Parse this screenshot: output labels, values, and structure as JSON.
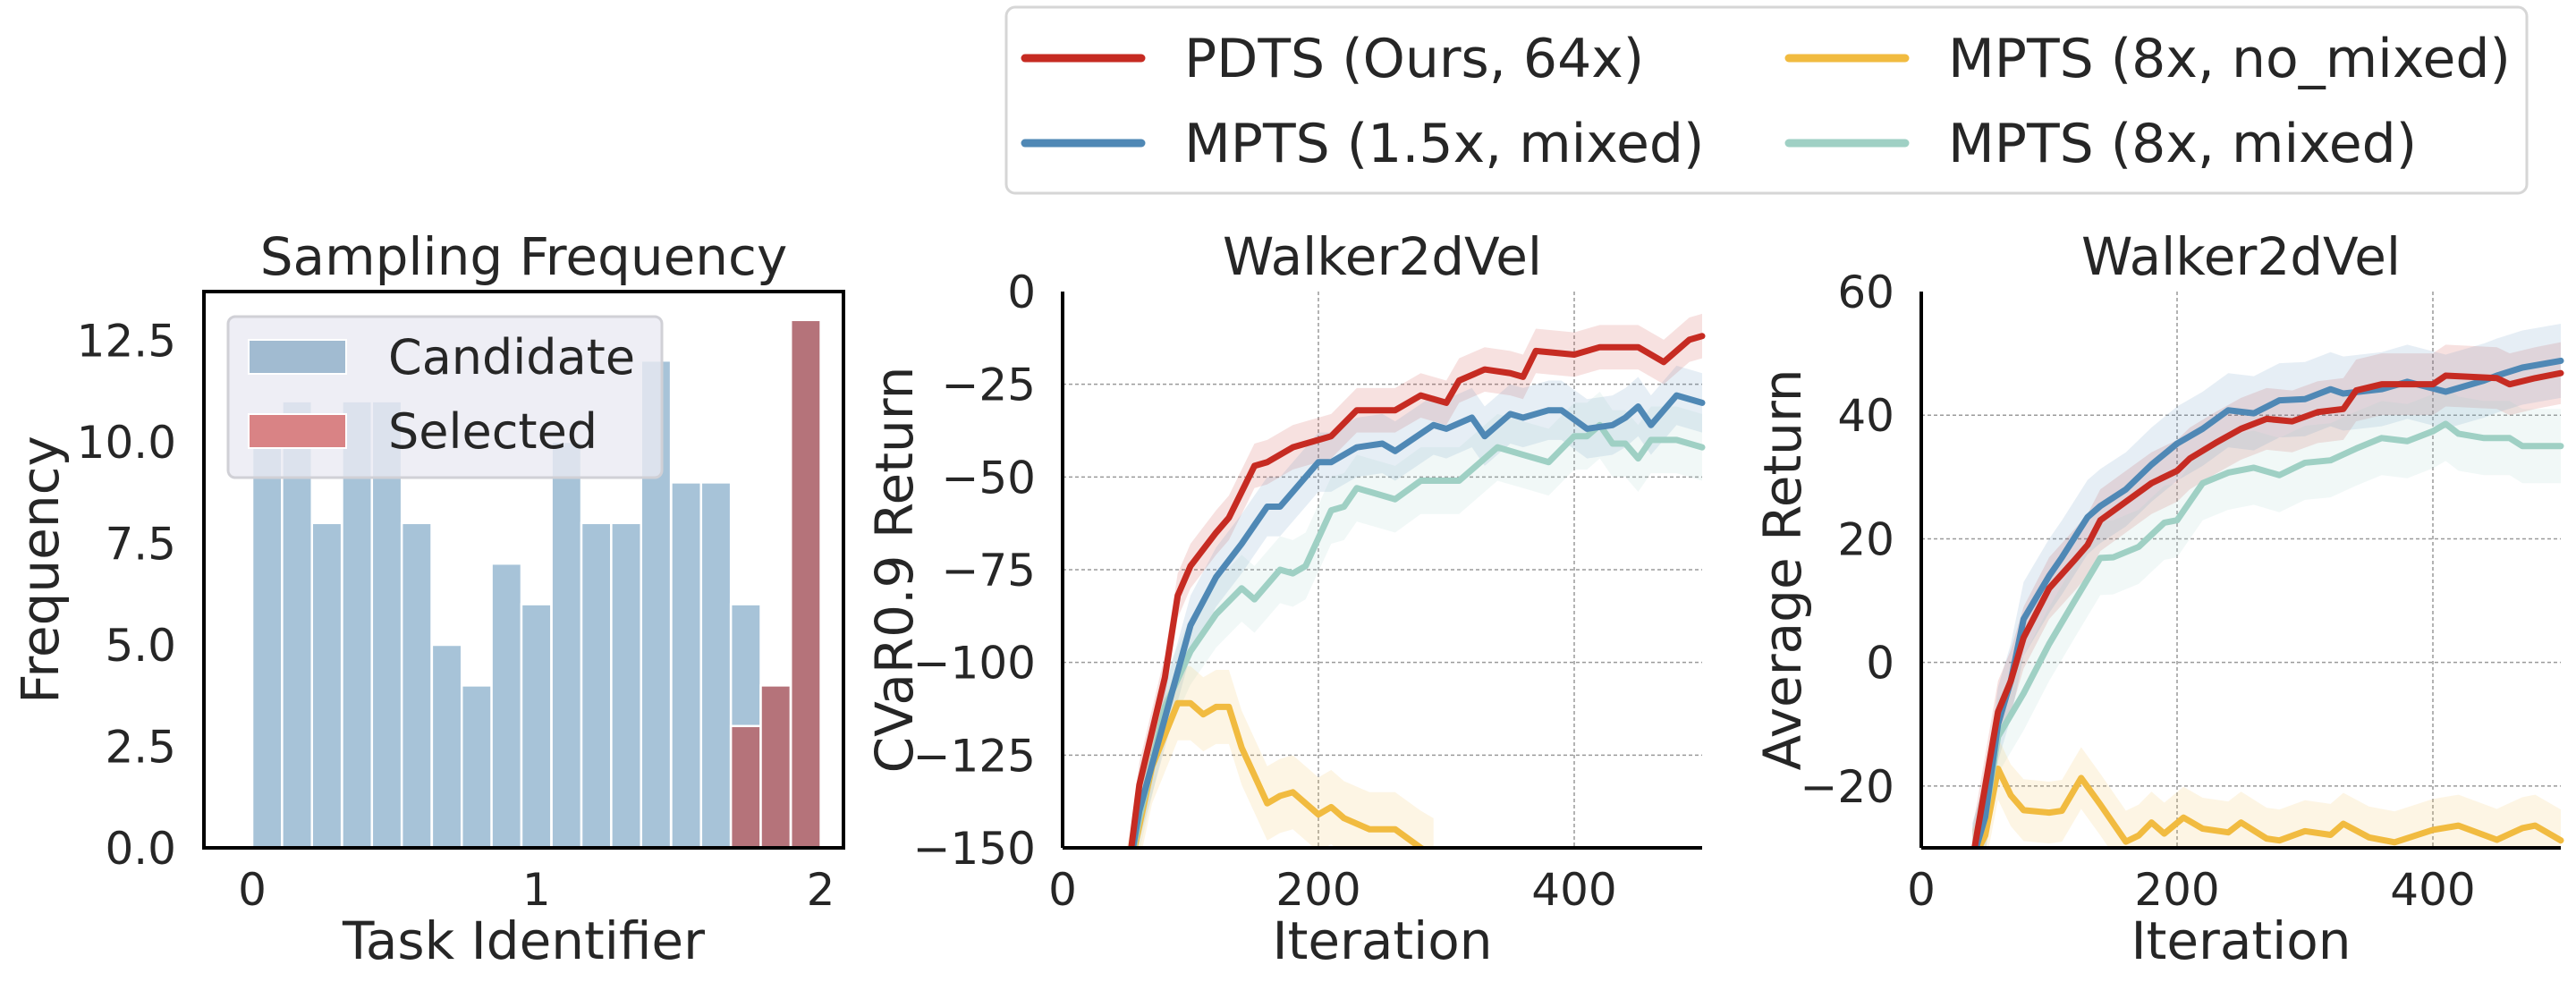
{
  "legend": {
    "items": [
      {
        "label": "PDTS (Ours, 64x)",
        "color": "#c62b22"
      },
      {
        "label": "MPTS (8x, no_mixed)",
        "color": "#f1bb40"
      },
      {
        "label": "MPTS (1.5x, mixed)",
        "color": "#4f88b5"
      },
      {
        "label": "MPTS (8x, mixed)",
        "color": "#9fd0c4"
      }
    ]
  },
  "chart_data": [
    {
      "type": "bar",
      "title": "Sampling Frequency",
      "xlabel": "Task Identifier",
      "ylabel": "Frequency",
      "xlim": [
        -0.17,
        2.08
      ],
      "ylim": [
        0,
        13.7
      ],
      "xticks": [
        "0",
        "1",
        "2"
      ],
      "yticks": [
        "0.0",
        "2.5",
        "5.0",
        "7.5",
        "10.0",
        "12.5"
      ],
      "bin_width": 0.105,
      "legend_position": "upper-left",
      "series": [
        {
          "name": "Candidate",
          "color": "#a7c3d8",
          "legend_color": "#a1bbd1",
          "bin_starts": [
            0,
            0.105,
            0.21,
            0.316,
            0.421,
            0.526,
            0.632,
            0.737,
            0.842,
            0.947,
            1.053,
            1.158,
            1.263,
            1.368,
            1.474,
            1.579,
            1.684
          ],
          "values": [
            10,
            11,
            8,
            11,
            11,
            8,
            5,
            4,
            7,
            6,
            10,
            8,
            8,
            12,
            9,
            9,
            6
          ]
        },
        {
          "name": "Selected",
          "color": "#b5737a",
          "legend_color": "#d98385",
          "bin_starts": [
            1.684,
            1.789,
            1.895
          ],
          "values": [
            3,
            4,
            13
          ]
        }
      ]
    },
    {
      "type": "line",
      "title": "Walker2dVel",
      "xlabel": "Iteration",
      "ylabel": "CVaR0.9 Return",
      "xlim": [
        0,
        500
      ],
      "ylim": [
        -150,
        0
      ],
      "xticks": [
        "0",
        "200",
        "400"
      ],
      "yticks": [
        "0",
        "−25",
        "−50",
        "−75",
        "−100",
        "−125",
        "−150"
      ],
      "grid": true,
      "series": [
        {
          "name": "PDTS (Ours, 64x)",
          "color": "#c62b22",
          "band": 6,
          "x": [
            50,
            60,
            80,
            90,
            100,
            120,
            130,
            150,
            160,
            180,
            200,
            210,
            230,
            260,
            280,
            300,
            310,
            330,
            350,
            360,
            370,
            400,
            420,
            450,
            470,
            490,
            500
          ],
          "y": [
            -160,
            -133,
            -104,
            -82,
            -74,
            -65,
            -61,
            -47,
            -46,
            -42,
            -40,
            -39,
            -32,
            -32,
            -28,
            -30,
            -24,
            -21,
            -22,
            -23,
            -16,
            -17,
            -15,
            -15,
            -19,
            -13,
            -12
          ]
        },
        {
          "name": "MPTS (1.5x, mixed)",
          "color": "#4f88b5",
          "band": 8,
          "x": [
            50,
            60,
            80,
            100,
            120,
            140,
            160,
            170,
            200,
            210,
            230,
            250,
            260,
            290,
            300,
            320,
            330,
            350,
            360,
            380,
            390,
            410,
            430,
            440,
            450,
            460,
            480,
            500
          ],
          "y": [
            -160,
            -140,
            -115,
            -90,
            -77,
            -68,
            -58,
            -58,
            -46,
            -46,
            -42,
            -41,
            -43,
            -36,
            -37,
            -34,
            -39,
            -33,
            -34,
            -32,
            -32,
            -37,
            -36,
            -34,
            -31,
            -36,
            -28,
            -30
          ]
        },
        {
          "name": "MPTS (8x, mixed)",
          "color": "#9fd0c4",
          "band": 9,
          "x": [
            50,
            60,
            80,
            100,
            120,
            140,
            150,
            170,
            180,
            190,
            210,
            220,
            230,
            240,
            260,
            280,
            310,
            340,
            360,
            380,
            400,
            410,
            420,
            430,
            440,
            450,
            460,
            480,
            500
          ],
          "y": [
            -160,
            -142,
            -112,
            -97,
            -87,
            -80,
            -83,
            -75,
            -76,
            -74,
            -59,
            -58,
            -53,
            -54,
            -56,
            -51,
            -51,
            -42,
            -44,
            -46,
            -39,
            -39,
            -36,
            -41,
            -41,
            -45,
            -40,
            -40,
            -42
          ]
        },
        {
          "name": "MPTS (8x, no_mixed)",
          "color": "#f1bb40",
          "band": 10,
          "x": [
            50,
            70,
            90,
            100,
            110,
            120,
            130,
            140,
            160,
            170,
            180,
            200,
            210,
            220,
            240,
            260,
            280,
            290
          ],
          "y": [
            -160,
            -128,
            -111,
            -111,
            -114,
            -112,
            -112,
            -123,
            -138,
            -136,
            -135,
            -141,
            -139,
            -142,
            -145,
            -145,
            -150,
            -152
          ]
        }
      ]
    },
    {
      "type": "line",
      "title": "Walker2dVel",
      "xlabel": "Iteration",
      "ylabel": "Average Return",
      "xlim": [
        0,
        500
      ],
      "ylim": [
        -30,
        60
      ],
      "xticks": [
        "0",
        "200",
        "400"
      ],
      "yticks": [
        "60",
        "40",
        "20",
        "0",
        "−20"
      ],
      "grid": true,
      "series": [
        {
          "name": "PDTS (Ours, 64x)",
          "color": "#c62b22",
          "band": 5,
          "x": [
            40,
            60,
            70,
            80,
            100,
            120,
            130,
            140,
            160,
            180,
            200,
            210,
            230,
            250,
            270,
            290,
            310,
            330,
            340,
            360,
            400,
            410,
            450,
            460,
            480,
            500
          ],
          "y": [
            -32,
            -8,
            -3,
            4,
            12,
            16.6,
            19,
            23,
            26,
            29,
            31,
            33,
            35.5,
            37.8,
            39.4,
            39,
            40.5,
            41,
            44,
            45,
            45,
            46.4,
            46,
            45,
            46,
            46.8
          ]
        },
        {
          "name": "MPTS (1.5x, mixed)",
          "color": "#4f88b5",
          "band": 6,
          "x": [
            40,
            50,
            60,
            70,
            80,
            100,
            110,
            130,
            140,
            160,
            180,
            200,
            220,
            240,
            260,
            280,
            300,
            320,
            330,
            360,
            380,
            410,
            440,
            450,
            470,
            500
          ],
          "y": [
            -32,
            -25,
            -10,
            -3,
            7,
            14,
            17,
            23.5,
            25.3,
            28,
            32,
            35.4,
            37.8,
            40.8,
            40.3,
            42.4,
            42.6,
            44.2,
            43.5,
            44.2,
            45.4,
            43.8,
            45.6,
            46.4,
            47.7,
            48.8
          ]
        },
        {
          "name": "MPTS (8x, mixed)",
          "color": "#9fd0c4",
          "band": 6,
          "x": [
            40,
            50,
            60,
            80,
            100,
            120,
            140,
            150,
            170,
            190,
            200,
            220,
            240,
            260,
            280,
            300,
            320,
            340,
            360,
            380,
            400,
            410,
            420,
            440,
            460,
            470,
            500
          ],
          "y": [
            -32,
            -25,
            -12,
            -5,
            3,
            10,
            16.9,
            17,
            18.7,
            22.6,
            23,
            29,
            30.7,
            31.5,
            30.3,
            32.3,
            32.7,
            34.6,
            36.3,
            35.8,
            37.4,
            38.6,
            37,
            36.3,
            36.3,
            35,
            35
          ]
        },
        {
          "name": "MPTS (8x, no_mixed)",
          "color": "#f1bb40",
          "band": 5,
          "x": [
            40,
            50,
            60,
            70,
            80,
            100,
            110,
            125,
            140,
            160,
            170,
            180,
            190,
            205,
            220,
            240,
            250,
            270,
            280,
            300,
            320,
            330,
            350,
            370,
            400,
            420,
            450,
            470,
            480,
            500
          ],
          "y": [
            -32,
            -28,
            -17.2,
            -21.5,
            -23.9,
            -24.3,
            -24,
            -18.7,
            -23,
            -29,
            -28,
            -25.9,
            -27.7,
            -25.1,
            -26.9,
            -27.5,
            -25.9,
            -28.5,
            -28.8,
            -27.3,
            -27.9,
            -26.1,
            -28.3,
            -29.1,
            -27.1,
            -26.4,
            -28.7,
            -26.8,
            -26.4,
            -28.8
          ]
        }
      ]
    }
  ]
}
